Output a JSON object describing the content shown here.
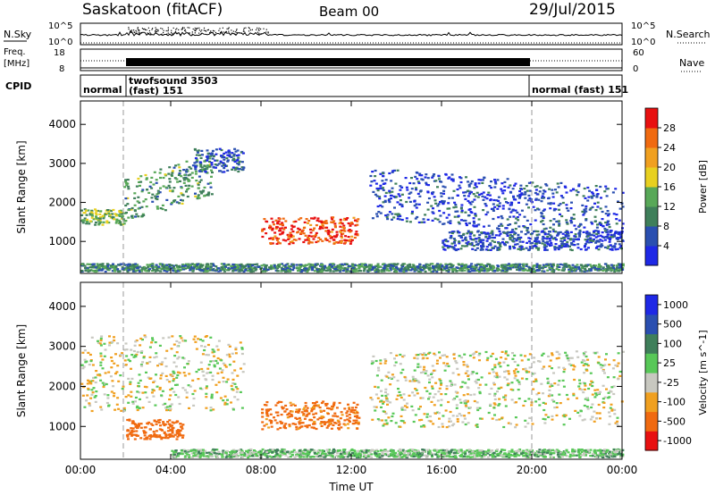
{
  "header": {
    "station": "Saskatoon (fitACF)",
    "beam": "Beam 00",
    "date": "29/Jul/2015"
  },
  "strip_labels": {
    "nsky": "N.Sky",
    "nsearch": "N.Search",
    "freq_line1": "Freq.",
    "freq_line2": "[MHz]",
    "nave": "Nave",
    "cpid": "CPID"
  },
  "strip_ticks": {
    "nsky_top": "10^5",
    "nsky_bottom": "10^0",
    "freq_top": "18",
    "freq_bottom": "8",
    "nave_top": "60",
    "nave_bottom": "0"
  },
  "cpid_labels": {
    "a": "normal",
    "b_line1": "twofsound 3503",
    "b_line2": "(fast) 151",
    "c": "normal (fast) 151"
  },
  "colors": {
    "power": [
      "#1e28e6",
      "#2a4fb0",
      "#3f7f5a",
      "#58a858",
      "#e8d020",
      "#f0a020",
      "#f06a10",
      "#e81010"
    ],
    "velocity": [
      "#e81010",
      "#f06a10",
      "#f0a020",
      "#c8c8c0",
      "#58c858",
      "#3f7f5a",
      "#2a4fb0",
      "#1e28e6"
    ],
    "grey": "#c8c8c0"
  },
  "chart_data": [
    {
      "type": "heatmap",
      "title": "Power",
      "ylabel": "Slant Range [km]",
      "xlabel": "",
      "x_ticks": [
        "00:00",
        "04:00",
        "08:00",
        "12:00",
        "16:00",
        "20:00",
        "00:00"
      ],
      "y_ticks": [
        "1000",
        "2000",
        "3000",
        "4000"
      ],
      "ylim": [
        180,
        4600
      ],
      "xlim_hours": [
        0,
        24
      ],
      "colorbar_label": "Power [dB]",
      "colorbar_ticks": [
        "4",
        "8",
        "12",
        "16",
        "20",
        "24",
        "28"
      ],
      "colorbar_range": [
        0,
        32
      ],
      "cpid_change_hours": [
        1.9,
        20.0
      ],
      "bands": [
        {
          "t0": 0.0,
          "t1": 1.9,
          "r0": 1450,
          "r1": 1850,
          "level": 14
        },
        {
          "t0": 1.9,
          "t1": 5.8,
          "r0": 1500,
          "r1": 2600,
          "slope": 0.7,
          "level": 12
        },
        {
          "t0": 5.0,
          "t1": 7.2,
          "r0": 2800,
          "r1": 3400,
          "level": 6
        },
        {
          "t0": 8.0,
          "t1": 12.3,
          "r0": 950,
          "r1": 1650,
          "level": 28
        },
        {
          "t0": 12.8,
          "t1": 24.0,
          "r0": 1600,
          "r1": 2900,
          "slope": -0.5,
          "level": 5
        },
        {
          "t0": 0.0,
          "t1": 24.0,
          "r0": 250,
          "r1": 450,
          "level": 10
        },
        {
          "t0": 16.0,
          "t1": 24.0,
          "r0": 800,
          "r1": 1300,
          "level": 5
        }
      ]
    },
    {
      "type": "heatmap",
      "title": "Velocity",
      "ylabel": "Slant Range [km]",
      "xlabel": "Time UT",
      "x_ticks": [
        "00:00",
        "04:00",
        "08:00",
        "12:00",
        "16:00",
        "20:00",
        "00:00"
      ],
      "y_ticks": [
        "1000",
        "2000",
        "3000",
        "4000"
      ],
      "ylim": [
        180,
        4600
      ],
      "xlim_hours": [
        0,
        24
      ],
      "colorbar_label": "Velocity [m s^-1]",
      "colorbar_ticks": [
        "1000",
        "500",
        "100",
        "25",
        "-25",
        "-100",
        "-500",
        "-1000"
      ],
      "cpid_change_hours": [
        1.9,
        20.0
      ],
      "bands": [
        {
          "t0": 0.0,
          "t1": 7.2,
          "r0": 1400,
          "r1": 3300,
          "velocity": 0
        },
        {
          "t0": 2.0,
          "t1": 4.5,
          "r0": 700,
          "r1": 1200,
          "velocity": -300
        },
        {
          "t0": 8.0,
          "t1": 12.3,
          "r0": 950,
          "r1": 1650,
          "velocity": -150
        },
        {
          "t0": 12.8,
          "t1": 24.0,
          "r0": 1000,
          "r1": 2900,
          "velocity": 0
        },
        {
          "t0": 4.0,
          "t1": 24.0,
          "r0": 250,
          "r1": 450,
          "velocity": 60
        }
      ]
    }
  ]
}
